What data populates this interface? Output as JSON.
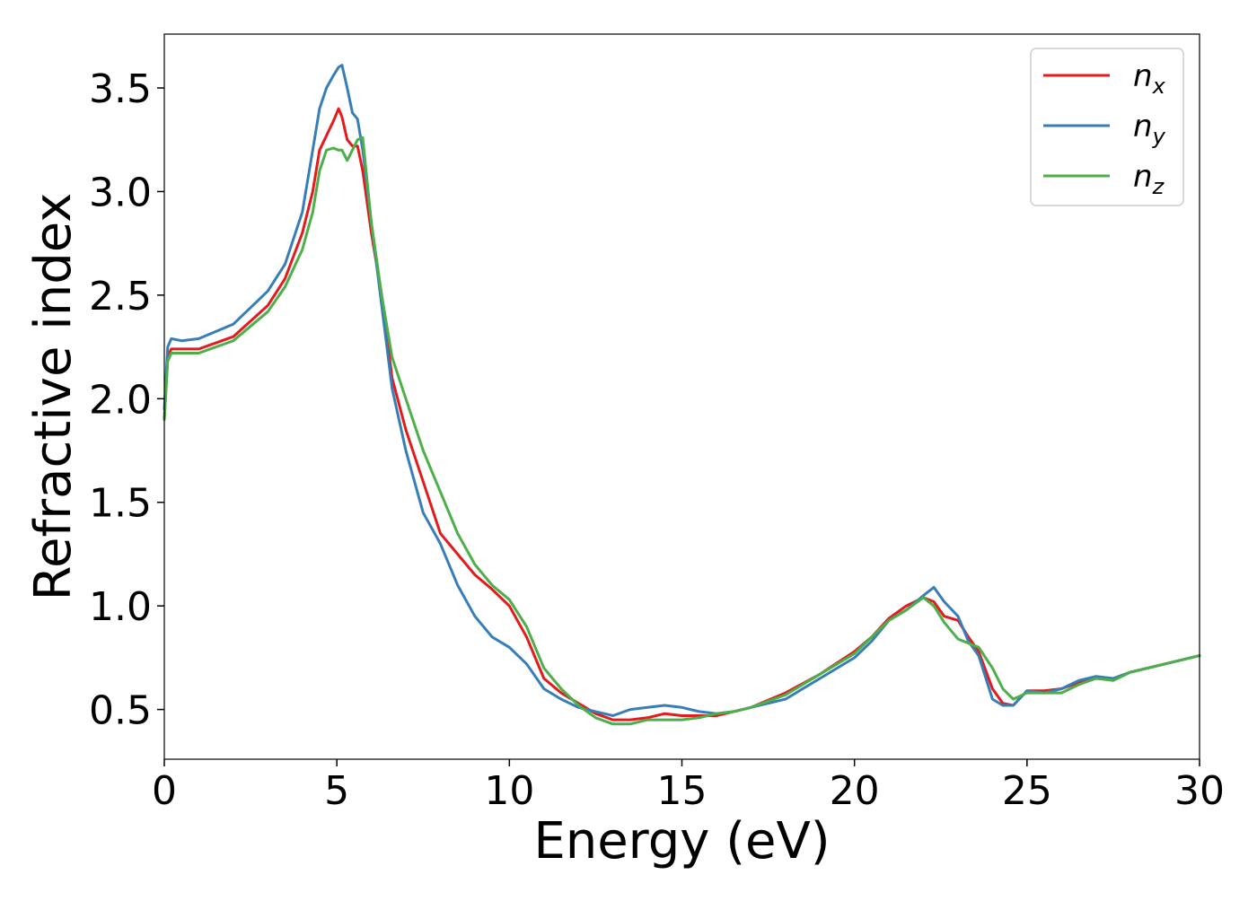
{
  "chart_data": {
    "type": "line",
    "title": "",
    "xlabel": "Energy (eV)",
    "ylabel": "Refractive index",
    "xlim": [
      0,
      30
    ],
    "ylim": [
      0.26,
      3.76
    ],
    "xticks": [
      0,
      5,
      10,
      15,
      20,
      25,
      30
    ],
    "xtick_labels": [
      "0",
      "5",
      "10",
      "15",
      "20",
      "25",
      "30"
    ],
    "yticks": [
      0.5,
      1.0,
      1.5,
      2.0,
      2.5,
      3.0,
      3.5
    ],
    "ytick_labels": [
      "0.5",
      "1.0",
      "1.5",
      "2.0",
      "2.5",
      "3.0",
      "3.5"
    ],
    "grid": false,
    "legend_position": "top-right",
    "series": [
      {
        "name": "n_x",
        "legend_base": "n",
        "legend_sub": "x",
        "color": "#e41a1c",
        "x": [
          0,
          0.1,
          0.2,
          0.5,
          1,
          2,
          3,
          3.5,
          4,
          4.3,
          4.5,
          4.7,
          4.9,
          5.05,
          5.15,
          5.3,
          5.45,
          5.6,
          5.75,
          6,
          6.3,
          6.6,
          7,
          7.5,
          8,
          8.5,
          9,
          9.5,
          10,
          10.5,
          11,
          11.5,
          12,
          12.5,
          13,
          13.5,
          14,
          14.5,
          15,
          15.5,
          16,
          16.5,
          17,
          18,
          19,
          20,
          20.5,
          21,
          21.5,
          22,
          22.3,
          22.6,
          23,
          23.3,
          23.6,
          24,
          24.3,
          24.6,
          25,
          25.5,
          26,
          26.5,
          27,
          27.5,
          28,
          29,
          30
        ],
        "y": [
          1.9,
          2.2,
          2.24,
          2.24,
          2.24,
          2.3,
          2.45,
          2.58,
          2.8,
          3.0,
          3.2,
          3.27,
          3.34,
          3.4,
          3.36,
          3.25,
          3.22,
          3.22,
          3.1,
          2.8,
          2.5,
          2.1,
          1.85,
          1.6,
          1.35,
          1.25,
          1.15,
          1.08,
          1.0,
          0.85,
          0.65,
          0.58,
          0.53,
          0.48,
          0.45,
          0.45,
          0.46,
          0.48,
          0.47,
          0.47,
          0.47,
          0.49,
          0.51,
          0.58,
          0.67,
          0.78,
          0.85,
          0.94,
          1.0,
          1.04,
          1.02,
          0.95,
          0.93,
          0.85,
          0.78,
          0.6,
          0.53,
          0.52,
          0.59,
          0.59,
          0.6,
          0.63,
          0.65,
          0.65,
          0.68,
          0.72,
          0.76
        ]
      },
      {
        "name": "n_y",
        "legend_base": "n",
        "legend_sub": "y",
        "color": "#377eb8",
        "x": [
          0,
          0.1,
          0.2,
          0.5,
          1,
          2,
          3,
          3.5,
          4,
          4.3,
          4.5,
          4.7,
          4.9,
          5.05,
          5.15,
          5.3,
          5.45,
          5.6,
          5.75,
          6,
          6.3,
          6.6,
          7,
          7.5,
          8,
          8.5,
          9,
          9.5,
          10,
          10.5,
          11,
          11.5,
          12,
          12.5,
          13,
          13.5,
          14,
          14.5,
          15,
          15.5,
          16,
          16.5,
          17,
          18,
          19,
          20,
          20.5,
          21,
          21.5,
          22,
          22.3,
          22.6,
          23,
          23.3,
          23.6,
          24,
          24.3,
          24.6,
          25,
          25.5,
          26,
          26.5,
          27,
          27.5,
          28,
          29,
          30
        ],
        "y": [
          1.95,
          2.25,
          2.29,
          2.28,
          2.29,
          2.36,
          2.52,
          2.65,
          2.9,
          3.2,
          3.4,
          3.5,
          3.56,
          3.6,
          3.61,
          3.5,
          3.38,
          3.35,
          3.2,
          2.85,
          2.45,
          2.05,
          1.75,
          1.45,
          1.3,
          1.1,
          0.95,
          0.85,
          0.8,
          0.72,
          0.6,
          0.55,
          0.51,
          0.49,
          0.47,
          0.5,
          0.51,
          0.52,
          0.51,
          0.49,
          0.48,
          0.49,
          0.51,
          0.55,
          0.65,
          0.75,
          0.83,
          0.93,
          0.98,
          1.05,
          1.09,
          1.02,
          0.95,
          0.83,
          0.76,
          0.55,
          0.52,
          0.52,
          0.59,
          0.58,
          0.6,
          0.64,
          0.66,
          0.65,
          0.68,
          0.72,
          0.76
        ]
      },
      {
        "name": "n_z",
        "legend_base": "n",
        "legend_sub": "z",
        "color": "#4daf4a",
        "x": [
          0,
          0.1,
          0.2,
          0.5,
          1,
          2,
          3,
          3.5,
          4,
          4.3,
          4.5,
          4.7,
          4.9,
          5.05,
          5.15,
          5.3,
          5.45,
          5.6,
          5.75,
          6,
          6.3,
          6.6,
          7,
          7.5,
          8,
          8.5,
          9,
          9.5,
          10,
          10.5,
          11,
          11.5,
          12,
          12.5,
          13,
          13.5,
          14,
          14.5,
          15,
          15.5,
          16,
          16.5,
          17,
          18,
          19,
          20,
          20.5,
          21,
          21.5,
          22,
          22.3,
          22.6,
          23,
          23.3,
          23.6,
          24,
          24.3,
          24.6,
          25,
          25.5,
          26,
          26.5,
          27,
          27.5,
          28,
          29,
          30
        ],
        "y": [
          1.9,
          2.18,
          2.22,
          2.22,
          2.22,
          2.28,
          2.42,
          2.54,
          2.72,
          2.9,
          3.1,
          3.2,
          3.21,
          3.2,
          3.2,
          3.15,
          3.2,
          3.25,
          3.26,
          2.85,
          2.5,
          2.2,
          2.0,
          1.75,
          1.55,
          1.35,
          1.2,
          1.1,
          1.03,
          0.9,
          0.7,
          0.6,
          0.52,
          0.46,
          0.43,
          0.43,
          0.45,
          0.45,
          0.45,
          0.46,
          0.48,
          0.49,
          0.51,
          0.57,
          0.67,
          0.77,
          0.85,
          0.93,
          0.98,
          1.04,
          1.0,
          0.92,
          0.84,
          0.82,
          0.8,
          0.7,
          0.6,
          0.55,
          0.58,
          0.58,
          0.58,
          0.62,
          0.65,
          0.64,
          0.68,
          0.72,
          0.76
        ]
      }
    ]
  }
}
